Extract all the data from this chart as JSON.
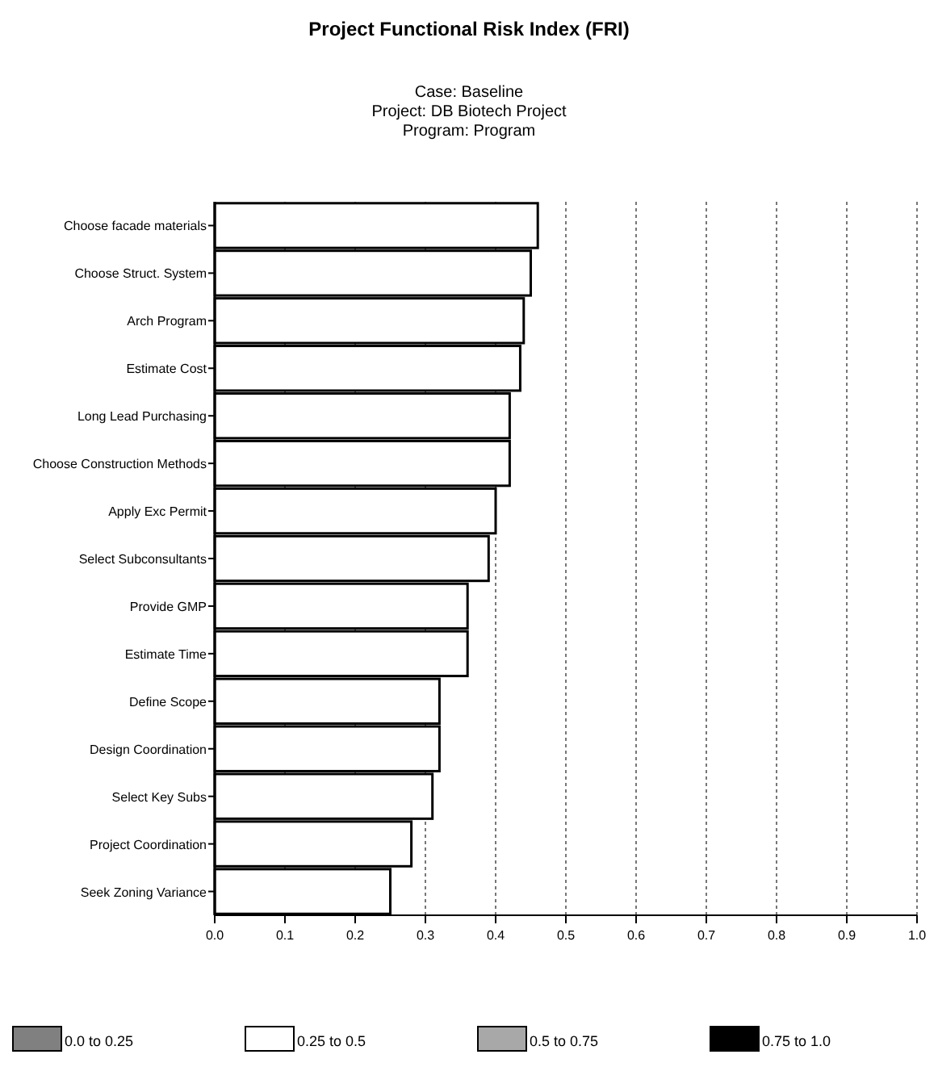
{
  "chart_data": {
    "type": "bar",
    "orientation": "horizontal",
    "stacked": true,
    "title": "Project Functional Risk Index (FRI)",
    "subtitle": "Case: Baseline\nProject: DB Biotech Project\nProgram: Program",
    "categories": [
      "Choose facade materials",
      "Choose Struct. System",
      "Arch Program",
      "Estimate Cost",
      "Long Lead Purchasing",
      "Choose Construction Methods",
      "Apply Exc Permit",
      "Select Subconsultants",
      "Provide GMP",
      "Estimate Time",
      "Define Scope",
      "Design Coordination",
      "Select Key Subs",
      "Project Coordination",
      "Seek Zoning Variance"
    ],
    "series": [
      {
        "name": "0.0 to 0.25",
        "color": "#808080",
        "values": [
          null,
          null,
          null,
          null,
          null,
          null,
          null,
          null,
          null,
          null,
          null,
          null,
          null,
          null,
          null
        ]
      },
      {
        "name": "0.25 to 0.5",
        "color": "#ffffff",
        "values": [
          0.46,
          0.45,
          0.44,
          0.435,
          0.42,
          0.42,
          0.4,
          0.39,
          0.36,
          0.36,
          0.32,
          0.32,
          0.31,
          0.28,
          0.25
        ]
      },
      {
        "name": "0.5 to 0.75",
        "color": "#a8a8a8",
        "values": [
          null,
          null,
          null,
          null,
          null,
          null,
          null,
          null,
          null,
          null,
          null,
          null,
          null,
          null,
          null
        ]
      },
      {
        "name": "0.75 to 1.0",
        "color": "#000000",
        "values": [
          null,
          null,
          null,
          null,
          null,
          null,
          null,
          null,
          null,
          null,
          null,
          null,
          null,
          null,
          null
        ]
      }
    ],
    "xlim": [
      0,
      1
    ],
    "xticks": [
      {
        "value": 0,
        "label": "0.0"
      },
      0.1,
      0.2,
      0.3,
      0.4,
      0.5,
      0.6,
      0.7,
      0.8,
      0.9,
      {
        "value": 1,
        "label": "1.0"
      }
    ],
    "grid": "x",
    "legend": "bottom"
  }
}
